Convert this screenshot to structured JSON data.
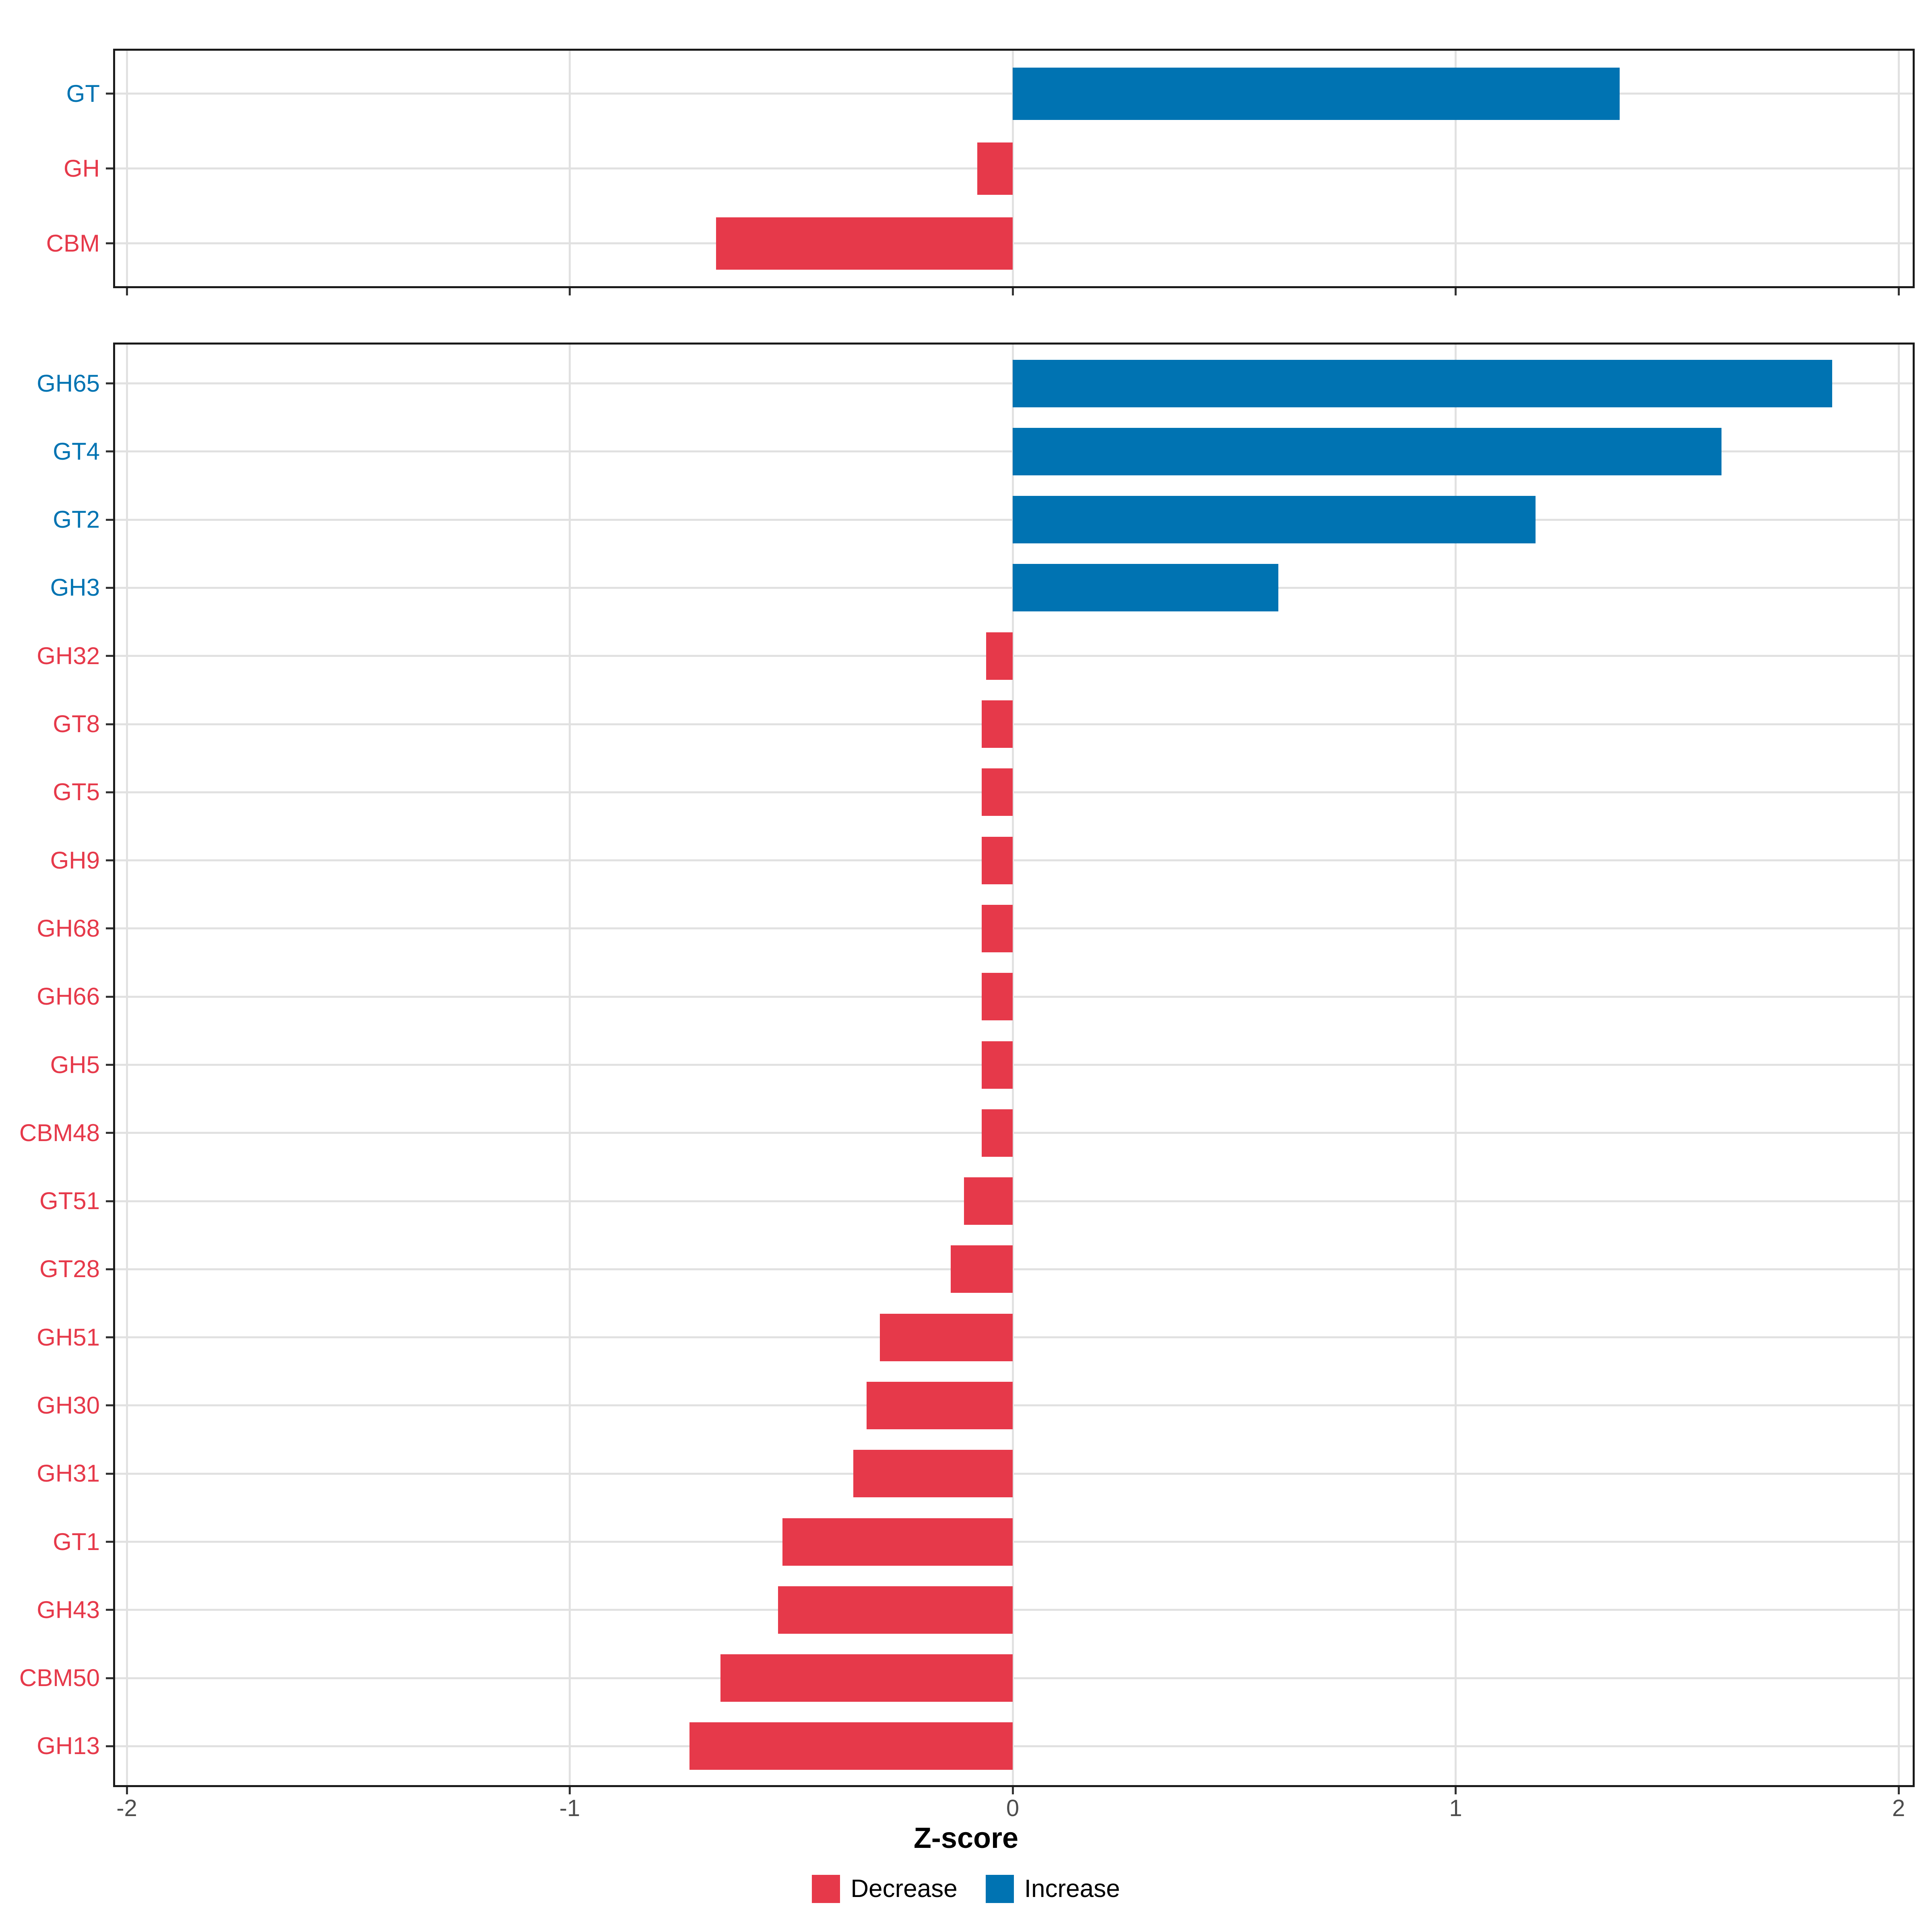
{
  "figure": {
    "background": "#FFFFFF",
    "x_axis": {
      "title": "Z-score",
      "tick_values": [
        -2,
        -1,
        0,
        1,
        2
      ],
      "tick_labels": [
        "-2",
        "-1",
        "0",
        "1",
        "2"
      ],
      "range": [
        -2,
        2
      ]
    },
    "colors": {
      "increase": "#0073B2",
      "decrease": "#E6394A",
      "grid": "#E1E1E1",
      "panel_border": "#1A1A1A",
      "tick": "#333333",
      "tick_label": "#4D4D4D",
      "axis_title": "#000000"
    },
    "legend": {
      "position": "bottom",
      "items": [
        {
          "key": "decrease",
          "label": "Decrease",
          "color": "#E6394A"
        },
        {
          "key": "increase",
          "label": "Increase",
          "color": "#0073B2"
        }
      ]
    }
  },
  "chart_data": [
    {
      "type": "bar",
      "orientation": "horizontal",
      "panel": "cazyme-classes",
      "xlabel": "Z-score",
      "xlim": [
        -2,
        2
      ],
      "x_ticks": [
        -2,
        -1,
        0,
        1,
        2
      ],
      "grid": true,
      "categories": [
        "GT",
        "GH",
        "CBM"
      ],
      "values": [
        1.37,
        -0.08,
        -0.67
      ],
      "directions": [
        "Increase",
        "Decrease",
        "Decrease"
      ]
    },
    {
      "type": "bar",
      "orientation": "horizontal",
      "panel": "cazyme-families",
      "xlabel": "Z-score",
      "xlim": [
        -2,
        2
      ],
      "x_ticks": [
        -2,
        -1,
        0,
        1,
        2
      ],
      "grid": true,
      "categories": [
        "GH65",
        "GT4",
        "GT2",
        "GH3",
        "GH32",
        "GT8",
        "GT5",
        "GH9",
        "GH68",
        "GH66",
        "GH5",
        "CBM48",
        "GT51",
        "GT28",
        "GH51",
        "GH30",
        "GH31",
        "GT1",
        "GH43",
        "CBM50",
        "GH13"
      ],
      "values": [
        1.85,
        1.6,
        1.18,
        0.6,
        -0.06,
        -0.07,
        -0.07,
        -0.07,
        -0.07,
        -0.07,
        -0.07,
        -0.07,
        -0.11,
        -0.14,
        -0.3,
        -0.33,
        -0.36,
        -0.52,
        -0.53,
        -0.66,
        -0.73
      ],
      "directions": [
        "Increase",
        "Increase",
        "Increase",
        "Increase",
        "Decrease",
        "Decrease",
        "Decrease",
        "Decrease",
        "Decrease",
        "Decrease",
        "Decrease",
        "Decrease",
        "Decrease",
        "Decrease",
        "Decrease",
        "Decrease",
        "Decrease",
        "Decrease",
        "Decrease",
        "Decrease",
        "Decrease"
      ]
    }
  ]
}
